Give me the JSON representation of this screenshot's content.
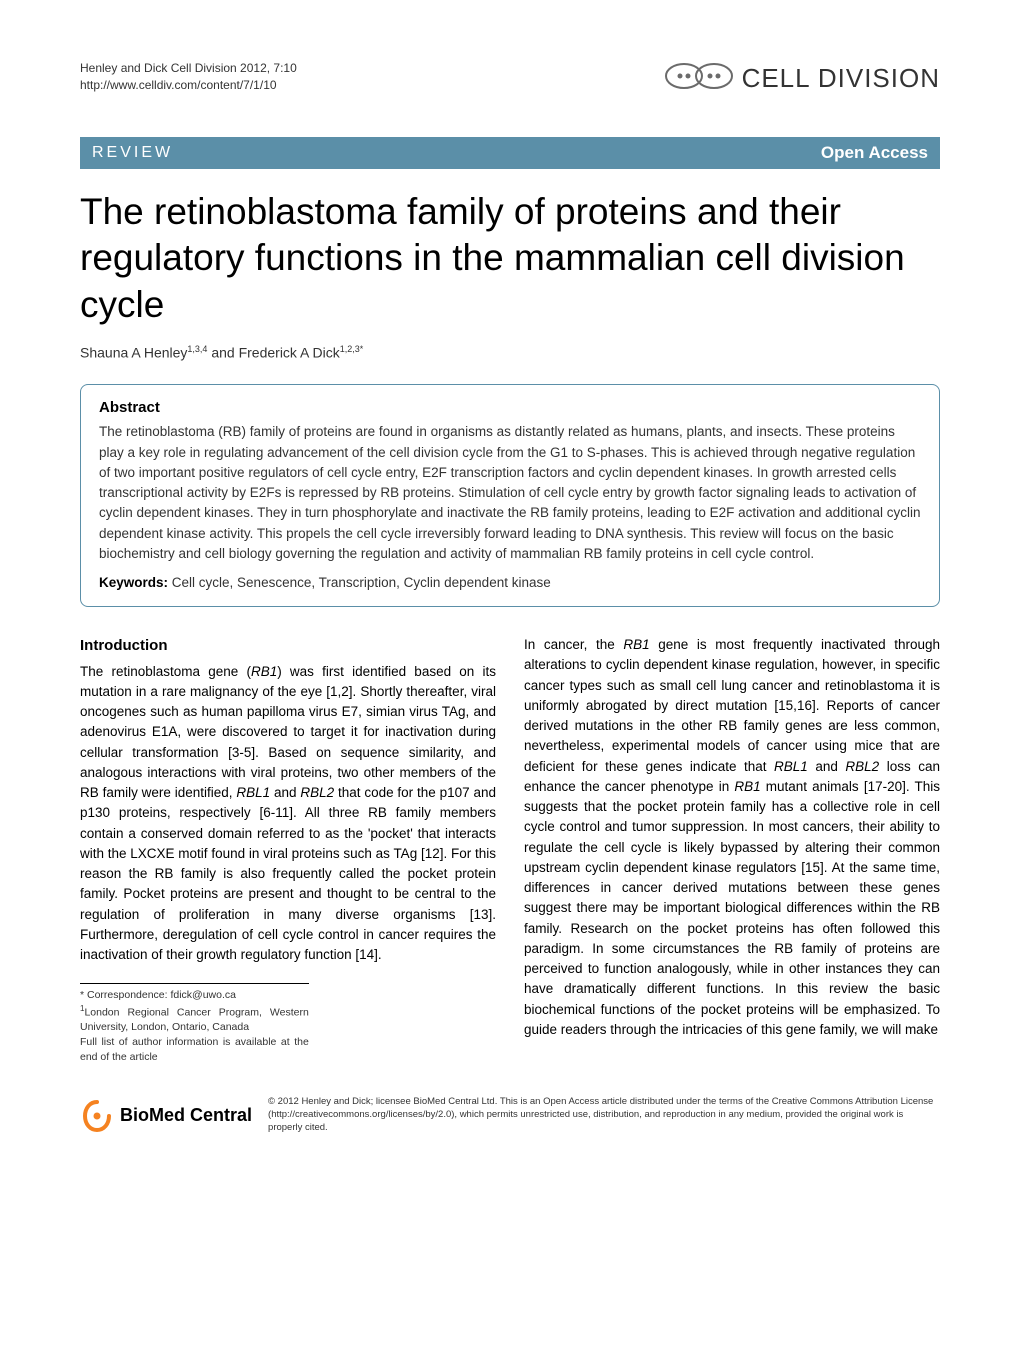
{
  "header": {
    "citation_line1": "Henley and Dick Cell Division 2012, 7:10",
    "citation_line2": "http://www.celldiv.com/content/7/1/10",
    "journal_name": "CELL DIVISION",
    "logo_color": "#6b6b6b"
  },
  "banner": {
    "type_label": "REVIEW",
    "access_label": "Open Access",
    "background_color": "#5b8fa8",
    "text_color": "#ffffff"
  },
  "title": "The retinoblastoma family of proteins and their regulatory functions in the mammalian cell division cycle",
  "authors_html": "Shauna A Henley<sup>1,3,4</sup> and Frederick A Dick<sup>1,2,3*</sup>",
  "abstract": {
    "heading": "Abstract",
    "text": "The retinoblastoma (RB) family of proteins are found in organisms as distantly related as humans, plants, and insects. These proteins play a key role in regulating advancement of the cell division cycle from the G1 to S-phases. This is achieved through negative regulation of two important positive regulators of cell cycle entry, E2F transcription factors and cyclin dependent kinases. In growth arrested cells transcriptional activity by E2Fs is repressed by RB proteins. Stimulation of cell cycle entry by growth factor signaling leads to activation of cyclin dependent kinases. They in turn phosphorylate and inactivate the RB family proteins, leading to E2F activation and additional cyclin dependent kinase activity. This propels the cell cycle irreversibly forward leading to DNA synthesis. This review will focus on the basic biochemistry and cell biology governing the regulation and activity of mammalian RB family proteins in cell cycle control.",
    "keywords_label": "Keywords:",
    "keywords": " Cell cycle, Senescence, Transcription, Cyclin dependent kinase"
  },
  "body": {
    "intro_heading": "Introduction",
    "col1_html": "The retinoblastoma gene (<span class=\"italic\">RB1</span>) was first identified based on its mutation in a rare malignancy of the eye [1,2]. Shortly thereafter, viral oncogenes such as human papilloma virus E7, simian virus TAg, and adenovirus E1A, were discovered to target it for inactivation during cellular transformation [3-5]. Based on sequence similarity, and analogous interactions with viral proteins, two other members of the RB family were identified, <span class=\"italic\">RBL1</span> and <span class=\"italic\">RBL2</span> that code for the p107 and p130 proteins, respectively [6-11]. All three RB family members contain a conserved domain referred to as the 'pocket' that interacts with the LXCXE motif found in viral proteins such as TAg [12]. For this reason the RB family is also frequently called the pocket protein family. Pocket proteins are present and thought to be central to the regulation of proliferation in many diverse organisms [13]. Furthermore, deregulation of cell cycle control in cancer requires the inactivation of their growth regulatory function [14].",
    "col2_html": "In cancer, the <span class=\"italic\">RB1</span> gene is most frequently inactivated through alterations to cyclin dependent kinase regulation, however, in specific cancer types such as small cell lung cancer and retinoblastoma it is uniformly abrogated by direct mutation [15,16]. Reports of cancer derived mutations in the other RB family genes are less common, nevertheless, experimental models of cancer using mice that are deficient for these genes indicate that <span class=\"italic\">RBL1</span> and <span class=\"italic\">RBL2</span> loss can enhance the cancer phenotype in <span class=\"italic\">RB1</span> mutant animals [17-20]. This suggests that the pocket protein family has a collective role in cell cycle control and tumor suppression. In most cancers, their ability to regulate the cell cycle is likely bypassed by altering their common upstream cyclin dependent kinase regulators [15]. At the same time, differences in cancer derived mutations between these genes suggest there may be important biological differences within the RB family. Research on the pocket proteins has often followed this paradigm. In some circumstances the RB family of proteins are perceived to function analogously, while in other instances they can have dramatically different functions. In this review the basic biochemical functions of the pocket proteins will be emphasized. To guide readers through the intricacies of this gene family, we will make"
  },
  "footnotes": {
    "correspondence": "* Correspondence: fdick@uwo.ca",
    "affiliation": "London Regional Cancer Program, Western University, London, Ontario, Canada",
    "affiliation_sup": "1",
    "author_info": "Full list of author information is available at the end of the article"
  },
  "footer": {
    "bmc_bio": "BioMed",
    "bmc_central": " Central",
    "bmc_icon_color": "#f58220",
    "license": "© 2012 Henley and Dick; licensee BioMed Central Ltd. This is an Open Access article distributed under the terms of the Creative Commons Attribution License (http://creativecommons.org/licenses/by/2.0), which permits unrestricted use, distribution, and reproduction in any medium, provided the original work is properly cited."
  }
}
